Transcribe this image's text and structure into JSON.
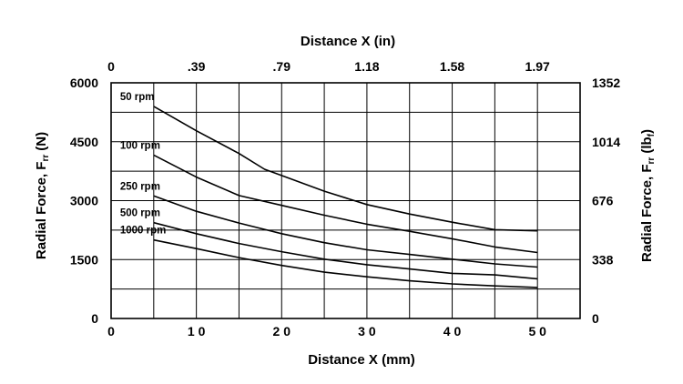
{
  "chart_data": {
    "type": "line",
    "title": "",
    "xlabel": "Distance X (mm)",
    "x2label": "Distance X (in)",
    "ylabel": "Radial Force, F",
    "ylabel_sub": "rr",
    "ylabel_unit": "(N)",
    "y2label": "Radial Force, F",
    "y2label_sub": "rr",
    "y2label_unit_open": "(lb",
    "y2label_unit_sub": "f",
    "y2label_unit_close": ")",
    "xlim": [
      0,
      55
    ],
    "ylim": [
      0,
      6000
    ],
    "grid": true,
    "x_ticks": [
      {
        "value": 0,
        "label": "0"
      },
      {
        "value": 10,
        "label": "1 0"
      },
      {
        "value": 20,
        "label": "2 0"
      },
      {
        "value": 30,
        "label": "3 0"
      },
      {
        "value": 40,
        "label": "4 0"
      },
      {
        "value": 50,
        "label": "5 0"
      }
    ],
    "x_grid": [
      0,
      5,
      10,
      15,
      20,
      25,
      30,
      35,
      40,
      45,
      50,
      55
    ],
    "x2_ticks": [
      {
        "value": 0,
        "label": "0"
      },
      {
        "value": 10,
        "label": ".39"
      },
      {
        "value": 20,
        "label": ".79"
      },
      {
        "value": 30,
        "label": "1.18"
      },
      {
        "value": 40,
        "label": "1.58"
      },
      {
        "value": 50,
        "label": "1.97"
      }
    ],
    "y_ticks": [
      {
        "value": 0,
        "label": "0"
      },
      {
        "value": 1500,
        "label": "1500"
      },
      {
        "value": 3000,
        "label": "3000"
      },
      {
        "value": 4500,
        "label": "4500"
      },
      {
        "value": 6000,
        "label": "6000"
      }
    ],
    "y_grid": [
      0,
      750,
      1500,
      2250,
      3000,
      3750,
      4500,
      5250,
      6000
    ],
    "y2_ticks": [
      {
        "value": 0,
        "label": "0"
      },
      {
        "value": 1500,
        "label": "338"
      },
      {
        "value": 3000,
        "label": "676"
      },
      {
        "value": 4500,
        "label": "1014"
      },
      {
        "value": 6000,
        "label": "1352"
      }
    ],
    "series": [
      {
        "name": "50 rpm",
        "x": [
          5,
          10,
          15,
          18,
          20,
          25,
          30,
          35,
          40,
          45,
          50
        ],
        "y": [
          5400,
          4780,
          4200,
          3800,
          3640,
          3240,
          2900,
          2660,
          2450,
          2260,
          2230
        ]
      },
      {
        "name": "100 rpm",
        "x": [
          5,
          10,
          15,
          20,
          25,
          30,
          35,
          40,
          45,
          50
        ],
        "y": [
          4160,
          3600,
          3130,
          2880,
          2630,
          2400,
          2220,
          2030,
          1820,
          1680
        ]
      },
      {
        "name": "250 rpm",
        "x": [
          5,
          10,
          15,
          20,
          25,
          30,
          35,
          40,
          45,
          50
        ],
        "y": [
          3120,
          2730,
          2430,
          2160,
          1930,
          1750,
          1630,
          1510,
          1390,
          1310
        ]
      },
      {
        "name": "500 rpm",
        "x": [
          5,
          10,
          15,
          20,
          25,
          30,
          35,
          40,
          45,
          50
        ],
        "y": [
          2440,
          2160,
          1910,
          1700,
          1510,
          1370,
          1260,
          1150,
          1110,
          1010
        ]
      },
      {
        "name": "1000 rpm",
        "x": [
          5,
          10,
          15,
          20,
          25,
          30,
          35,
          40,
          45,
          50
        ],
        "y": [
          2000,
          1780,
          1550,
          1350,
          1180,
          1060,
          960,
          880,
          830,
          790
        ]
      }
    ],
    "label_anchor_x": [
      0.5,
      0.5,
      0.5,
      0.5,
      0.5
    ]
  }
}
